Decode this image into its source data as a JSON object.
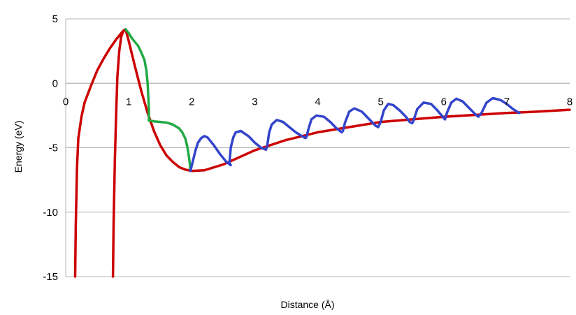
{
  "chart_data": {
    "type": "line",
    "xlabel": "Distance (Å)",
    "ylabel": "Energy (eV)",
    "xlim": [
      0,
      8
    ],
    "ylim": [
      -15,
      5
    ],
    "x_ticks": [
      0,
      1,
      2,
      3,
      4,
      5,
      6,
      7,
      8
    ],
    "y_ticks": [
      5,
      0,
      -5,
      -10,
      -15
    ],
    "grid": "horizontal",
    "series": [
      {
        "color": "#cc0000",
        "x": [
          0.15,
          0.16,
          0.18,
          0.2,
          0.25,
          0.3,
          0.4,
          0.5,
          0.6,
          0.7,
          0.8,
          0.9,
          0.95
        ],
        "y": [
          -15,
          -11,
          -6.5,
          -4.3,
          -2.6,
          -1.5,
          -0.2,
          1.0,
          1.9,
          2.7,
          3.4,
          4.0,
          4.2
        ]
      },
      {
        "color": "#cc0000",
        "x": [
          0.75,
          0.76,
          0.78,
          0.8,
          0.82,
          0.85,
          0.88,
          0.92,
          0.95,
          1.0,
          1.1,
          1.2,
          1.3,
          1.4,
          1.5,
          1.6,
          1.7,
          1.8,
          1.9,
          2.0,
          2.2,
          2.5,
          3.0,
          3.5,
          4.0,
          4.5,
          5.0,
          5.5,
          6.0,
          6.5,
          7.0,
          7.5,
          8.0
        ],
        "y": [
          -15,
          -11,
          -6,
          -2.5,
          0.5,
          2.5,
          3.6,
          4.1,
          4.2,
          3.3,
          1.3,
          -0.6,
          -2.3,
          -3.7,
          -4.8,
          -5.6,
          -6.1,
          -6.5,
          -6.7,
          -6.8,
          -6.75,
          -6.3,
          -5.2,
          -4.4,
          -3.8,
          -3.4,
          -3.0,
          -2.8,
          -2.6,
          -2.45,
          -2.3,
          -2.2,
          -2.05
        ]
      },
      {
        "color": "#22aa44",
        "x": [
          0.95,
          1.0,
          1.05,
          1.1,
          1.15,
          1.2,
          1.25,
          1.28,
          1.3,
          1.31,
          1.32,
          1.32,
          1.33,
          1.34,
          1.35,
          1.4,
          1.5,
          1.6,
          1.7,
          1.8,
          1.85,
          1.9,
          1.93,
          1.95,
          1.97,
          1.98
        ],
        "y": [
          4.2,
          3.9,
          3.5,
          3.2,
          2.9,
          2.4,
          1.8,
          1.0,
          0.0,
          -1.0,
          -2.0,
          -2.9,
          -2.9,
          -2.9,
          -2.9,
          -2.95,
          -3.0,
          -3.05,
          -3.2,
          -3.5,
          -3.8,
          -4.3,
          -4.9,
          -5.5,
          -6.2,
          -6.8
        ]
      },
      {
        "color": "#3344cc",
        "x": [
          1.98,
          2.02,
          2.06,
          2.1,
          2.15,
          2.2,
          2.25,
          2.35,
          2.45,
          2.55,
          2.62,
          2.6,
          2.62,
          2.66,
          2.7,
          2.78,
          2.9,
          3.0,
          3.1,
          3.18,
          3.2,
          3.23,
          3.27,
          3.35,
          3.45,
          3.55,
          3.65,
          3.75,
          3.8,
          3.82,
          3.85,
          3.9,
          3.98,
          4.1,
          4.2,
          4.3,
          4.38,
          4.4,
          4.43,
          4.5,
          4.58,
          4.7,
          4.8,
          4.92,
          4.96,
          5.0,
          5.05,
          5.12,
          5.2,
          5.3,
          5.4,
          5.46,
          5.5,
          5.52,
          5.58,
          5.68,
          5.8,
          5.9,
          6.0,
          6.02,
          6.05,
          6.12,
          6.2,
          6.3,
          6.4,
          6.5,
          6.55,
          6.6,
          6.68,
          6.78,
          6.9,
          7.0,
          7.1,
          7.2
        ],
        "y": [
          -6.8,
          -6.0,
          -5.2,
          -4.6,
          -4.25,
          -4.1,
          -4.2,
          -4.8,
          -5.5,
          -6.1,
          -6.35,
          -6.2,
          -5.0,
          -4.2,
          -3.8,
          -3.7,
          -4.1,
          -4.6,
          -5.0,
          -5.15,
          -4.8,
          -3.8,
          -3.2,
          -2.85,
          -3.0,
          -3.4,
          -3.8,
          -4.1,
          -4.25,
          -4.2,
          -3.6,
          -2.8,
          -2.5,
          -2.6,
          -3.0,
          -3.5,
          -3.8,
          -3.7,
          -3.1,
          -2.2,
          -1.95,
          -2.2,
          -2.7,
          -3.3,
          -3.4,
          -3.0,
          -2.1,
          -1.6,
          -1.7,
          -2.1,
          -2.6,
          -3.0,
          -3.1,
          -2.9,
          -2.0,
          -1.5,
          -1.6,
          -2.1,
          -2.7,
          -2.8,
          -2.3,
          -1.5,
          -1.2,
          -1.4,
          -1.9,
          -2.4,
          -2.6,
          -2.3,
          -1.5,
          -1.15,
          -1.3,
          -1.6,
          -2.0,
          -2.3
        ]
      }
    ]
  }
}
